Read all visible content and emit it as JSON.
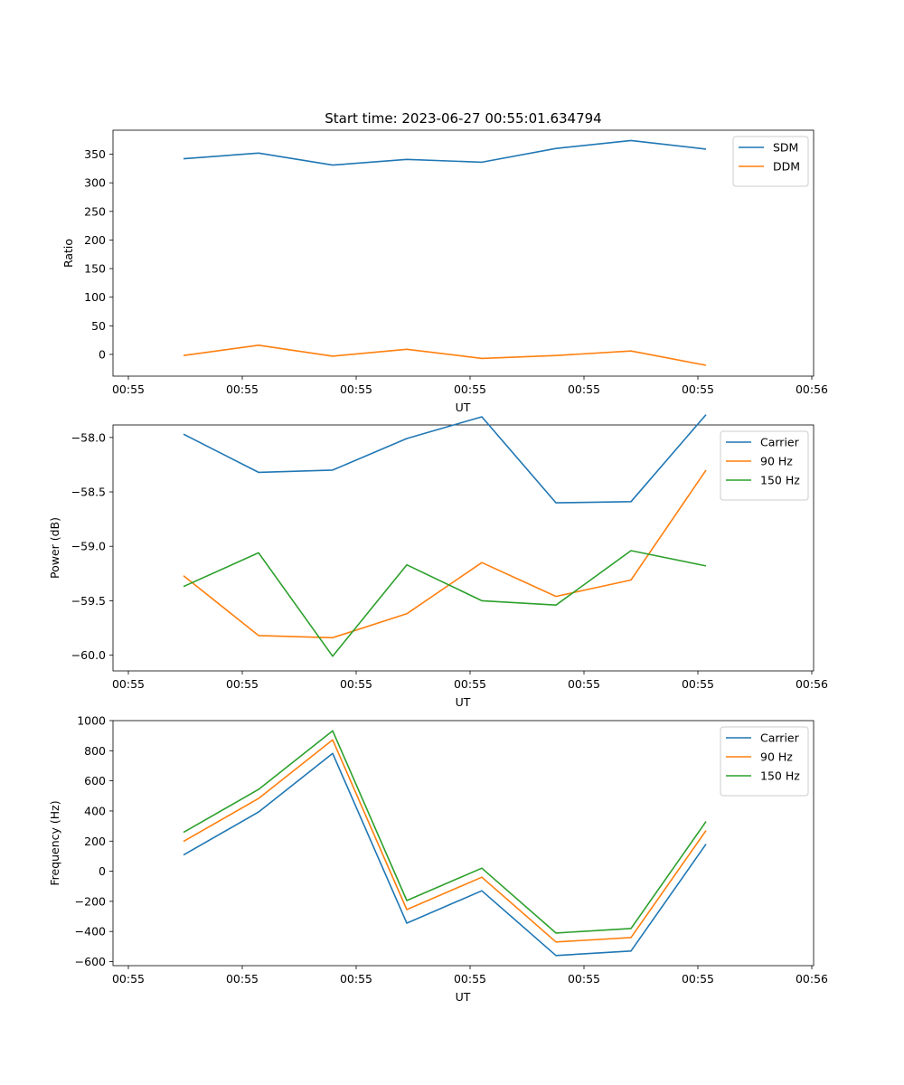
{
  "figure": {
    "title": "Start time: 2023-06-27 00:55:01.634794"
  },
  "chart_data": [
    {
      "type": "line",
      "xlabel": "UT",
      "ylabel": "Ratio",
      "x_tick_labels": [
        "00:55",
        "00:55",
        "00:55",
        "00:55",
        "00:55",
        "00:55",
        "00:56"
      ],
      "y_ticks": [
        0,
        50,
        100,
        150,
        200,
        250,
        300,
        350
      ],
      "ylim": [
        -38,
        392
      ],
      "legend_position": "top-right",
      "series": [
        {
          "name": "SDM",
          "color": "#1f77b4",
          "values": [
            342,
            352,
            331,
            341,
            336,
            360,
            374,
            359
          ]
        },
        {
          "name": "DDM",
          "color": "#ff7f0e",
          "values": [
            -2,
            16,
            -3,
            9,
            -7,
            -2,
            6,
            -19
          ]
        }
      ]
    },
    {
      "type": "line",
      "xlabel": "UT",
      "ylabel": "Power (dB)",
      "x_tick_labels": [
        "00:55",
        "00:55",
        "00:55",
        "00:55",
        "00:55",
        "00:55",
        "00:56"
      ],
      "y_ticks": [
        -60.0,
        -59.5,
        -59.0,
        -58.5,
        -58.0
      ],
      "y_tick_labels": [
        "−60.0",
        "−59.5",
        "−59.0",
        "−58.5",
        "−58.0"
      ],
      "ylim": [
        -60.145,
        -57.885
      ],
      "legend_position": "top-right",
      "series": [
        {
          "name": "Carrier",
          "color": "#1f77b4",
          "values": [
            -57.97,
            -58.32,
            -58.3,
            -58.01,
            -57.81,
            -58.6,
            -58.59,
            -57.79
          ]
        },
        {
          "name": "90 Hz",
          "color": "#ff7f0e",
          "values": [
            -59.27,
            -59.82,
            -59.84,
            -59.62,
            -59.15,
            -59.46,
            -59.31,
            -58.3
          ]
        },
        {
          "name": "150 Hz",
          "color": "#2ca02c",
          "values": [
            -59.37,
            -59.06,
            -60.01,
            -59.17,
            -59.5,
            -59.54,
            -59.04,
            -59.18
          ]
        }
      ]
    },
    {
      "type": "line",
      "xlabel": "UT",
      "ylabel": "Frequency (Hz)",
      "x_tick_labels": [
        "00:55",
        "00:55",
        "00:55",
        "00:55",
        "00:55",
        "00:55",
        "00:56"
      ],
      "y_ticks": [
        -600,
        -400,
        -200,
        0,
        200,
        400,
        600,
        800,
        1000
      ],
      "y_tick_labels": [
        "−600",
        "−400",
        "−200",
        "0",
        "200",
        "400",
        "600",
        "800",
        "1000"
      ],
      "ylim": [
        -627,
        1000
      ],
      "legend_position": "top-right",
      "series": [
        {
          "name": "Carrier",
          "color": "#1f77b4",
          "values": [
            108,
            393,
            782,
            -345,
            -130,
            -560,
            -530,
            180
          ]
        },
        {
          "name": "90 Hz",
          "color": "#ff7f0e",
          "values": [
            198,
            483,
            872,
            -255,
            -40,
            -470,
            -440,
            270
          ]
        },
        {
          "name": "150 Hz",
          "color": "#2ca02c",
          "values": [
            258,
            543,
            932,
            -195,
            20,
            -410,
            -380,
            330
          ]
        }
      ]
    }
  ]
}
